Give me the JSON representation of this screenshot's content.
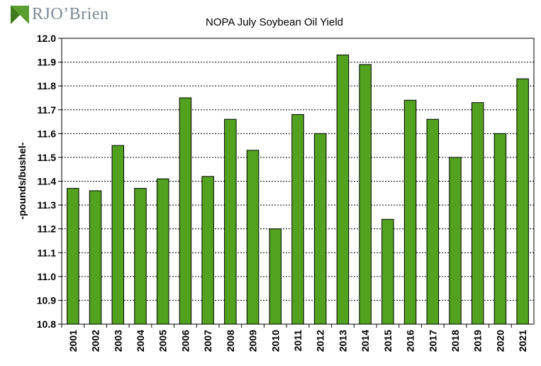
{
  "logo": {
    "text": "RJO’Brien"
  },
  "colors": {
    "bar_fill": "#52a21f",
    "bar_stroke": "#000000",
    "grid": "#000000",
    "logo_green": "#5a9e2f",
    "logo_gray": "#7d8a96"
  },
  "chart_data": {
    "type": "bar",
    "title": "NOPA July Soybean Oil Yield",
    "xlabel": "",
    "ylabel": "-pounds/bushel-",
    "ylim": [
      10.8,
      12.0
    ],
    "ytick_step": 0.1,
    "ytick_labels": [
      "10.8",
      "10.9",
      "11.0",
      "11.1",
      "11.2",
      "11.3",
      "11.4",
      "11.5",
      "11.6",
      "11.7",
      "11.8",
      "11.9",
      "12.0"
    ],
    "grid": "horizontal dashed",
    "categories": [
      "2001",
      "2002",
      "2003",
      "2004",
      "2005",
      "2006",
      "2007",
      "2008",
      "2009",
      "2010",
      "2011",
      "2012",
      "2013",
      "2014",
      "2015",
      "2016",
      "2017",
      "2018",
      "2019",
      "2020",
      "2021"
    ],
    "values": [
      11.37,
      11.36,
      11.55,
      11.37,
      11.41,
      11.75,
      11.42,
      11.66,
      11.53,
      11.2,
      11.68,
      11.6,
      11.93,
      11.89,
      11.24,
      11.74,
      11.66,
      11.5,
      11.73,
      11.6,
      11.83
    ]
  }
}
